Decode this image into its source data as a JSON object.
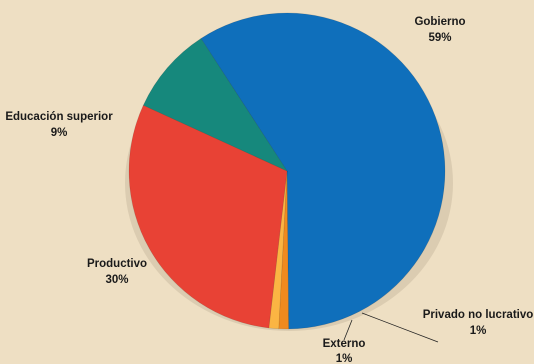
{
  "chart_data": {
    "type": "pie",
    "title": "",
    "slices": [
      {
        "label": "Gobierno",
        "value": 59,
        "pct_label": "59%",
        "color": "#0f6fbb"
      },
      {
        "label": "Privado no lucrativo",
        "value": 1,
        "pct_label": "1%",
        "color": "#f08a1e"
      },
      {
        "label": "Externo",
        "value": 1,
        "pct_label": "1%",
        "color": "#fbb543"
      },
      {
        "label": "Productivo",
        "value": 30,
        "pct_label": "30%",
        "color": "#e84235"
      },
      {
        "label": "Educación superior",
        "value": 9,
        "pct_label": "9%",
        "color": "#16887c"
      }
    ]
  }
}
